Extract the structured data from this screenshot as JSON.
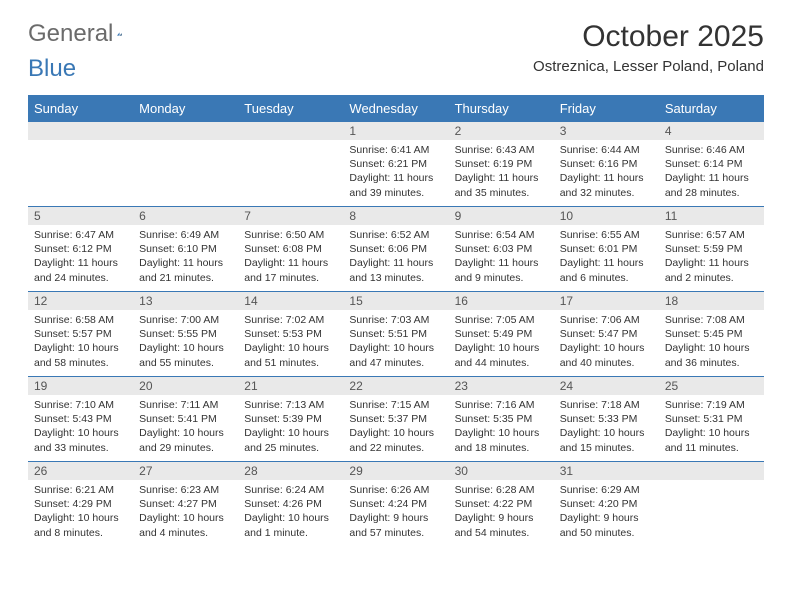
{
  "logo": {
    "text_a": "General",
    "text_b": "Blue"
  },
  "title": "October 2025",
  "subtitle": "Ostreznica, Lesser Poland, Poland",
  "colors": {
    "header_bg": "#3a78b5",
    "header_fg": "#ffffff",
    "daynum_bg": "#e9e9e9",
    "row_border": "#3a78b5"
  },
  "day_names": [
    "Sunday",
    "Monday",
    "Tuesday",
    "Wednesday",
    "Thursday",
    "Friday",
    "Saturday"
  ],
  "weeks": [
    [
      {
        "n": "",
        "sunrise": "",
        "sunset": "",
        "daylight": ""
      },
      {
        "n": "",
        "sunrise": "",
        "sunset": "",
        "daylight": ""
      },
      {
        "n": "",
        "sunrise": "",
        "sunset": "",
        "daylight": ""
      },
      {
        "n": "1",
        "sunrise": "Sunrise: 6:41 AM",
        "sunset": "Sunset: 6:21 PM",
        "daylight": "Daylight: 11 hours and 39 minutes."
      },
      {
        "n": "2",
        "sunrise": "Sunrise: 6:43 AM",
        "sunset": "Sunset: 6:19 PM",
        "daylight": "Daylight: 11 hours and 35 minutes."
      },
      {
        "n": "3",
        "sunrise": "Sunrise: 6:44 AM",
        "sunset": "Sunset: 6:16 PM",
        "daylight": "Daylight: 11 hours and 32 minutes."
      },
      {
        "n": "4",
        "sunrise": "Sunrise: 6:46 AM",
        "sunset": "Sunset: 6:14 PM",
        "daylight": "Daylight: 11 hours and 28 minutes."
      }
    ],
    [
      {
        "n": "5",
        "sunrise": "Sunrise: 6:47 AM",
        "sunset": "Sunset: 6:12 PM",
        "daylight": "Daylight: 11 hours and 24 minutes."
      },
      {
        "n": "6",
        "sunrise": "Sunrise: 6:49 AM",
        "sunset": "Sunset: 6:10 PM",
        "daylight": "Daylight: 11 hours and 21 minutes."
      },
      {
        "n": "7",
        "sunrise": "Sunrise: 6:50 AM",
        "sunset": "Sunset: 6:08 PM",
        "daylight": "Daylight: 11 hours and 17 minutes."
      },
      {
        "n": "8",
        "sunrise": "Sunrise: 6:52 AM",
        "sunset": "Sunset: 6:06 PM",
        "daylight": "Daylight: 11 hours and 13 minutes."
      },
      {
        "n": "9",
        "sunrise": "Sunrise: 6:54 AM",
        "sunset": "Sunset: 6:03 PM",
        "daylight": "Daylight: 11 hours and 9 minutes."
      },
      {
        "n": "10",
        "sunrise": "Sunrise: 6:55 AM",
        "sunset": "Sunset: 6:01 PM",
        "daylight": "Daylight: 11 hours and 6 minutes."
      },
      {
        "n": "11",
        "sunrise": "Sunrise: 6:57 AM",
        "sunset": "Sunset: 5:59 PM",
        "daylight": "Daylight: 11 hours and 2 minutes."
      }
    ],
    [
      {
        "n": "12",
        "sunrise": "Sunrise: 6:58 AM",
        "sunset": "Sunset: 5:57 PM",
        "daylight": "Daylight: 10 hours and 58 minutes."
      },
      {
        "n": "13",
        "sunrise": "Sunrise: 7:00 AM",
        "sunset": "Sunset: 5:55 PM",
        "daylight": "Daylight: 10 hours and 55 minutes."
      },
      {
        "n": "14",
        "sunrise": "Sunrise: 7:02 AM",
        "sunset": "Sunset: 5:53 PM",
        "daylight": "Daylight: 10 hours and 51 minutes."
      },
      {
        "n": "15",
        "sunrise": "Sunrise: 7:03 AM",
        "sunset": "Sunset: 5:51 PM",
        "daylight": "Daylight: 10 hours and 47 minutes."
      },
      {
        "n": "16",
        "sunrise": "Sunrise: 7:05 AM",
        "sunset": "Sunset: 5:49 PM",
        "daylight": "Daylight: 10 hours and 44 minutes."
      },
      {
        "n": "17",
        "sunrise": "Sunrise: 7:06 AM",
        "sunset": "Sunset: 5:47 PM",
        "daylight": "Daylight: 10 hours and 40 minutes."
      },
      {
        "n": "18",
        "sunrise": "Sunrise: 7:08 AM",
        "sunset": "Sunset: 5:45 PM",
        "daylight": "Daylight: 10 hours and 36 minutes."
      }
    ],
    [
      {
        "n": "19",
        "sunrise": "Sunrise: 7:10 AM",
        "sunset": "Sunset: 5:43 PM",
        "daylight": "Daylight: 10 hours and 33 minutes."
      },
      {
        "n": "20",
        "sunrise": "Sunrise: 7:11 AM",
        "sunset": "Sunset: 5:41 PM",
        "daylight": "Daylight: 10 hours and 29 minutes."
      },
      {
        "n": "21",
        "sunrise": "Sunrise: 7:13 AM",
        "sunset": "Sunset: 5:39 PM",
        "daylight": "Daylight: 10 hours and 25 minutes."
      },
      {
        "n": "22",
        "sunrise": "Sunrise: 7:15 AM",
        "sunset": "Sunset: 5:37 PM",
        "daylight": "Daylight: 10 hours and 22 minutes."
      },
      {
        "n": "23",
        "sunrise": "Sunrise: 7:16 AM",
        "sunset": "Sunset: 5:35 PM",
        "daylight": "Daylight: 10 hours and 18 minutes."
      },
      {
        "n": "24",
        "sunrise": "Sunrise: 7:18 AM",
        "sunset": "Sunset: 5:33 PM",
        "daylight": "Daylight: 10 hours and 15 minutes."
      },
      {
        "n": "25",
        "sunrise": "Sunrise: 7:19 AM",
        "sunset": "Sunset: 5:31 PM",
        "daylight": "Daylight: 10 hours and 11 minutes."
      }
    ],
    [
      {
        "n": "26",
        "sunrise": "Sunrise: 6:21 AM",
        "sunset": "Sunset: 4:29 PM",
        "daylight": "Daylight: 10 hours and 8 minutes."
      },
      {
        "n": "27",
        "sunrise": "Sunrise: 6:23 AM",
        "sunset": "Sunset: 4:27 PM",
        "daylight": "Daylight: 10 hours and 4 minutes."
      },
      {
        "n": "28",
        "sunrise": "Sunrise: 6:24 AM",
        "sunset": "Sunset: 4:26 PM",
        "daylight": "Daylight: 10 hours and 1 minute."
      },
      {
        "n": "29",
        "sunrise": "Sunrise: 6:26 AM",
        "sunset": "Sunset: 4:24 PM",
        "daylight": "Daylight: 9 hours and 57 minutes."
      },
      {
        "n": "30",
        "sunrise": "Sunrise: 6:28 AM",
        "sunset": "Sunset: 4:22 PM",
        "daylight": "Daylight: 9 hours and 54 minutes."
      },
      {
        "n": "31",
        "sunrise": "Sunrise: 6:29 AM",
        "sunset": "Sunset: 4:20 PM",
        "daylight": "Daylight: 9 hours and 50 minutes."
      },
      {
        "n": "",
        "sunrise": "",
        "sunset": "",
        "daylight": ""
      }
    ]
  ]
}
